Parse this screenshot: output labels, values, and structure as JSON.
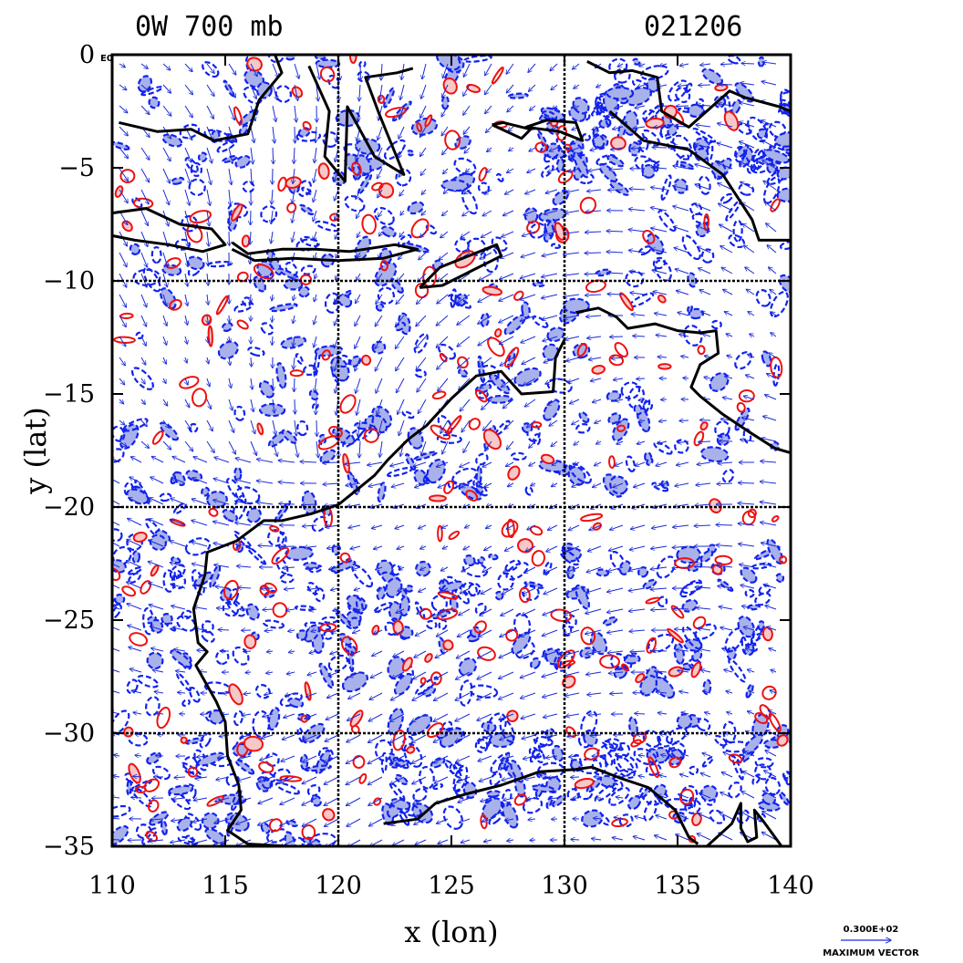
{
  "header": {
    "title_left": "0W 700 mb",
    "title_right": "021206"
  },
  "axes": {
    "xlabel": "x (lon)",
    "ylabel": "y (lat)",
    "xlim": [
      110,
      140
    ],
    "ylim": [
      -35,
      0
    ],
    "x_ticks": [
      "110",
      "115",
      "120",
      "125",
      "130",
      "135",
      "140"
    ],
    "y_ticks": [
      "0",
      "−5",
      "−10",
      "−15",
      "−20",
      "−25",
      "−30",
      "−35"
    ],
    "corner_tag": "E0",
    "grid_lon": [
      120,
      130
    ],
    "grid_lat": [
      -10,
      -20,
      -30
    ]
  },
  "legend": {
    "vector_value": "0.300E+02",
    "vector_label": "MAXIMUM VECTOR"
  },
  "colors": {
    "positive_contour": "#ee1111",
    "positive_fill": "#f6c8c8",
    "negative_contour": "#1122ee",
    "negative_fill": "#a9b1ea",
    "vectors": "#1a2bd9",
    "coastline": "#000000"
  },
  "coastline": [
    [
      [
        110.0,
        -7.0
      ],
      [
        111.5,
        -6.8
      ],
      [
        113.0,
        -7.5
      ],
      [
        114.4,
        -7.7
      ],
      [
        115.0,
        -8.4
      ],
      [
        114.0,
        -8.7
      ],
      [
        112.5,
        -8.4
      ],
      [
        111.0,
        -8.2
      ],
      [
        110.0,
        -8.0
      ]
    ],
    [
      [
        115.3,
        -8.3
      ],
      [
        116.0,
        -8.8
      ],
      [
        117.5,
        -8.6
      ],
      [
        119.0,
        -8.6
      ],
      [
        120.5,
        -8.7
      ],
      [
        122.5,
        -8.4
      ],
      [
        123.5,
        -8.6
      ],
      [
        122.0,
        -9.0
      ],
      [
        120.0,
        -9.1
      ],
      [
        118.0,
        -9.0
      ],
      [
        116.3,
        -9.1
      ],
      [
        115.3,
        -8.6
      ]
    ],
    [
      [
        123.6,
        -10.3
      ],
      [
        124.5,
        -9.4
      ],
      [
        125.5,
        -9.0
      ],
      [
        127.0,
        -8.4
      ],
      [
        127.2,
        -8.9
      ],
      [
        125.8,
        -9.6
      ],
      [
        124.6,
        -10.2
      ],
      [
        123.6,
        -10.3
      ]
    ],
    [
      [
        118.7,
        -0.5
      ],
      [
        119.6,
        -2.5
      ],
      [
        119.4,
        -4.5
      ],
      [
        120.3,
        -5.6
      ],
      [
        120.4,
        -2.3
      ],
      [
        121.6,
        -4.5
      ],
      [
        122.9,
        -5.3
      ],
      [
        121.8,
        -2.6
      ],
      [
        121.2,
        -1.0
      ],
      [
        122.6,
        -0.8
      ],
      [
        123.3,
        -0.6
      ]
    ],
    [
      [
        110.3,
        -3.0
      ],
      [
        112.0,
        -3.4
      ],
      [
        113.5,
        -3.3
      ],
      [
        114.5,
        -3.8
      ],
      [
        116.0,
        -3.5
      ],
      [
        116.5,
        -2.0
      ],
      [
        117.5,
        -0.8
      ],
      [
        117.2,
        0.0
      ]
    ],
    [
      [
        126.8,
        -3.1
      ],
      [
        128.1,
        -3.7
      ],
      [
        128.5,
        -3.3
      ],
      [
        127.3,
        -3.0
      ],
      [
        126.8,
        -3.1
      ]
    ],
    [
      [
        129.8,
        -3.4
      ],
      [
        130.8,
        -3.8
      ],
      [
        130.5,
        -3.0
      ],
      [
        129.2,
        -2.9
      ],
      [
        128.3,
        -3.2
      ],
      [
        129.8,
        -3.4
      ]
    ],
    [
      [
        131.0,
        -0.3
      ],
      [
        132.0,
        -0.8
      ],
      [
        133.0,
        -0.7
      ],
      [
        134.1,
        -1.0
      ],
      [
        134.3,
        -2.5
      ],
      [
        135.5,
        -3.2
      ],
      [
        137.3,
        -1.6
      ],
      [
        138.0,
        -1.9
      ],
      [
        139.5,
        -2.3
      ],
      [
        140.0,
        -2.5
      ]
    ],
    [
      [
        132.0,
        -2.5
      ],
      [
        133.5,
        -3.8
      ],
      [
        135.5,
        -4.2
      ],
      [
        137.0,
        -5.3
      ],
      [
        138.3,
        -7.3
      ],
      [
        138.6,
        -8.2
      ],
      [
        140.0,
        -8.2
      ]
    ],
    [
      [
        130.5,
        -11.4
      ],
      [
        131.5,
        -11.2
      ],
      [
        132.3,
        -11.6
      ],
      [
        132.8,
        -12.1
      ],
      [
        134.0,
        -11.9
      ],
      [
        135.0,
        -12.2
      ],
      [
        136.0,
        -12.3
      ],
      [
        136.7,
        -12.2
      ],
      [
        136.8,
        -13.2
      ],
      [
        136.0,
        -13.7
      ],
      [
        135.6,
        -14.7
      ],
      [
        136.0,
        -15.1
      ],
      [
        137.0,
        -15.9
      ],
      [
        138.2,
        -16.7
      ],
      [
        139.3,
        -17.4
      ],
      [
        140.0,
        -17.6
      ]
    ],
    [
      [
        130.0,
        -12.6
      ],
      [
        129.6,
        -13.4
      ],
      [
        129.5,
        -14.9
      ],
      [
        128.1,
        -15.0
      ],
      [
        127.2,
        -14.0
      ],
      [
        126.1,
        -14.2
      ],
      [
        125.0,
        -15.2
      ],
      [
        123.9,
        -16.4
      ],
      [
        123.1,
        -17.0
      ],
      [
        122.2,
        -17.9
      ],
      [
        121.6,
        -18.6
      ],
      [
        120.0,
        -19.9
      ],
      [
        118.8,
        -20.3
      ],
      [
        117.5,
        -20.6
      ],
      [
        116.7,
        -20.6
      ],
      [
        115.5,
        -21.5
      ],
      [
        114.2,
        -22.0
      ],
      [
        114.1,
        -23.0
      ],
      [
        113.6,
        -24.5
      ],
      [
        113.8,
        -26.0
      ],
      [
        114.2,
        -26.4
      ],
      [
        113.7,
        -27.0
      ],
      [
        114.6,
        -28.6
      ],
      [
        115.0,
        -29.5
      ],
      [
        115.1,
        -31.0
      ],
      [
        115.6,
        -32.3
      ],
      [
        115.7,
        -33.4
      ],
      [
        115.1,
        -34.3
      ],
      [
        116.0,
        -34.9
      ],
      [
        117.8,
        -35.0
      ]
    ],
    [
      [
        122.0,
        -34.0
      ],
      [
        123.5,
        -33.8
      ],
      [
        124.3,
        -33.1
      ],
      [
        125.6,
        -32.7
      ],
      [
        127.2,
        -32.3
      ],
      [
        128.9,
        -31.7
      ],
      [
        130.5,
        -31.6
      ],
      [
        131.2,
        -31.5
      ],
      [
        132.5,
        -32.0
      ],
      [
        133.7,
        -32.4
      ],
      [
        134.3,
        -32.9
      ],
      [
        134.9,
        -33.4
      ],
      [
        135.5,
        -34.6
      ],
      [
        135.9,
        -34.9
      ]
    ],
    [
      [
        136.3,
        -35.0
      ],
      [
        137.4,
        -34.0
      ],
      [
        137.8,
        -33.1
      ],
      [
        137.8,
        -34.2
      ],
      [
        138.1,
        -34.8
      ],
      [
        138.5,
        -34.6
      ],
      [
        138.4,
        -33.4
      ],
      [
        138.8,
        -33.9
      ],
      [
        139.6,
        -35.0
      ]
    ]
  ]
}
